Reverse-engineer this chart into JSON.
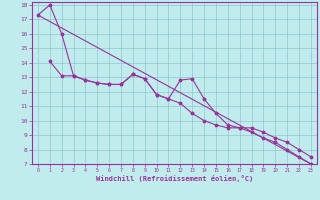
{
  "xlabel": "Windchill (Refroidissement éolien,°C)",
  "xlim": [
    -0.5,
    23.5
  ],
  "ylim": [
    7,
    18.2
  ],
  "yticks": [
    7,
    8,
    9,
    10,
    11,
    12,
    13,
    14,
    15,
    16,
    17,
    18
  ],
  "xticks": [
    0,
    1,
    2,
    3,
    4,
    5,
    6,
    7,
    8,
    9,
    10,
    11,
    12,
    13,
    14,
    15,
    16,
    17,
    18,
    19,
    20,
    21,
    22,
    23
  ],
  "bg_color": "#c0ecee",
  "line_color": "#993399",
  "grid_color": "#90c8d0",
  "straight_line_x": [
    0,
    23
  ],
  "straight_line_y": [
    17.3,
    7.0
  ],
  "line_upper_x": [
    0,
    1,
    2,
    3,
    4,
    5,
    6,
    7,
    8,
    9,
    10,
    11,
    12,
    13,
    14,
    15,
    16,
    17,
    18,
    19,
    20,
    21,
    22,
    23
  ],
  "line_upper_y": [
    17.3,
    18.0,
    16.0,
    13.1,
    12.8,
    12.6,
    12.5,
    12.5,
    13.2,
    12.9,
    11.8,
    11.5,
    12.8,
    12.9,
    11.5,
    10.5,
    9.7,
    9.5,
    9.5,
    9.2,
    8.8,
    8.5,
    8.0,
    7.5
  ],
  "line_lower_x": [
    1,
    2,
    3,
    4,
    5,
    6,
    7,
    8,
    9,
    10,
    11,
    12,
    13,
    14,
    15,
    16,
    17,
    18,
    19,
    20,
    21,
    22,
    23
  ],
  "line_lower_y": [
    14.1,
    13.1,
    13.1,
    12.8,
    12.6,
    12.5,
    12.5,
    13.2,
    12.9,
    11.8,
    11.5,
    11.2,
    10.5,
    10.0,
    9.7,
    9.5,
    9.5,
    9.2,
    8.8,
    8.5,
    8.0,
    7.5,
    7.0
  ]
}
